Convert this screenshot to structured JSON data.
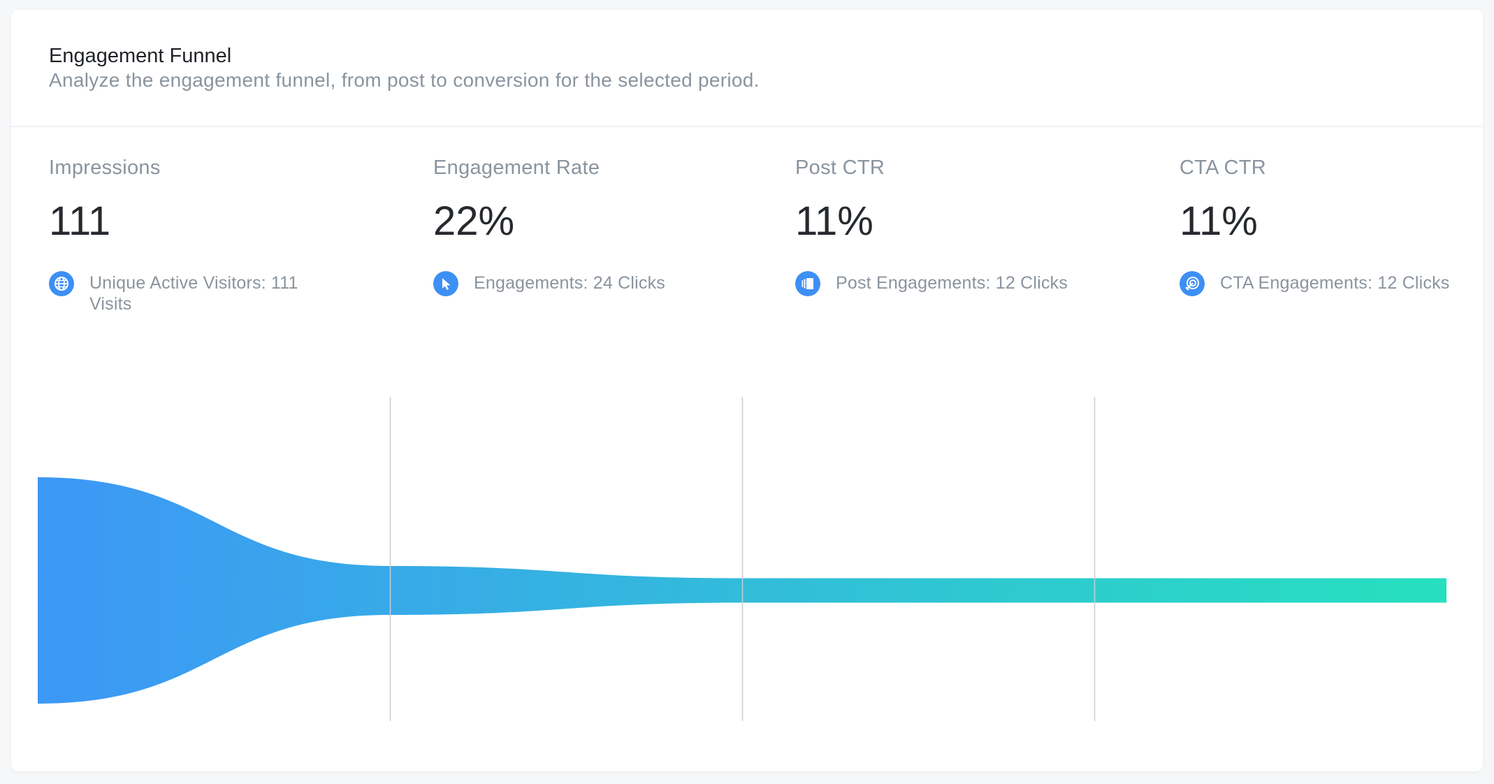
{
  "header": {
    "title": "Engagement Funnel",
    "subtitle": "Analyze the engagement funnel, from post to conversion for the selected period."
  },
  "metrics": [
    {
      "label": "Impressions",
      "value": "111",
      "icon": "globe-icon",
      "detail": "Unique Active Visitors: 111 Visits"
    },
    {
      "label": "Engagement Rate",
      "value": "22%",
      "icon": "cursor-icon",
      "detail": "Engagements: 24 Clicks"
    },
    {
      "label": "Post CTR",
      "value": "11%",
      "icon": "post-icon",
      "detail": "Post Engagements: 12 Clicks"
    },
    {
      "label": "CTA CTR",
      "value": "11%",
      "icon": "target-icon",
      "detail": "CTA Engagements: 12 Clicks"
    }
  ],
  "colors": {
    "accent": "#3d8ff4",
    "funnel_start": "#3d97f6",
    "funnel_end": "#27e0bf",
    "divider": "#c9cdd1"
  },
  "chart_data": {
    "type": "area",
    "title": "Engagement Funnel",
    "stages": [
      "Impressions",
      "Engagements",
      "Post Engagements",
      "CTA Engagements"
    ],
    "values": [
      111,
      24,
      12,
      12
    ],
    "units": [
      "Visits",
      "Clicks",
      "Clicks",
      "Clicks"
    ]
  }
}
